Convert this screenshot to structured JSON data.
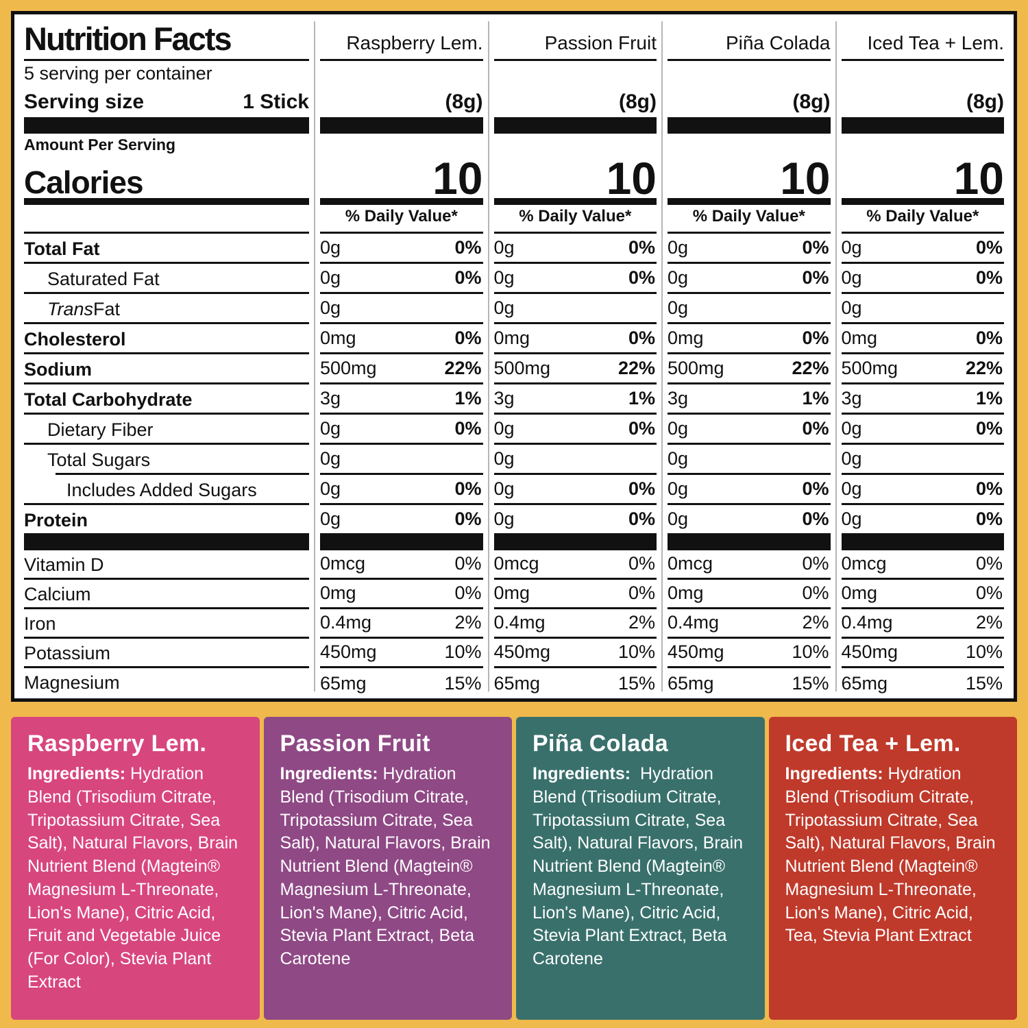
{
  "colors": {
    "frame": "#EFB94C",
    "table_border": "#111111",
    "divider": "#b5b5b5"
  },
  "nutrition": {
    "title": "Nutrition Facts",
    "servings_per_container": "5 serving per container",
    "serving_size_label": "Serving size",
    "serving_size_value": "1 Stick",
    "amount_per_serving": "Amount Per Serving",
    "calories_label": "Calories",
    "daily_value_header": "% Daily Value*",
    "flavors": [
      {
        "name": "Raspberry Lem.",
        "serving_weight": "(8g)",
        "calories": "10"
      },
      {
        "name": "Passion Fruit",
        "serving_weight": "(8g)",
        "calories": "10"
      },
      {
        "name": "Piña Colada",
        "serving_weight": "(8g)",
        "calories": "10"
      },
      {
        "name": "Iced Tea + Lem.",
        "serving_weight": "(8g)",
        "calories": "10"
      }
    ],
    "rows": [
      {
        "label": "Total Fat",
        "bold": true,
        "indent": 0,
        "amount": "0g",
        "dv": "0%"
      },
      {
        "label": "Saturated Fat",
        "bold": false,
        "indent": 1,
        "amount": "0g",
        "dv": "0%"
      },
      {
        "label": "Trans Fat",
        "bold": false,
        "indent": 1,
        "amount": "0g",
        "dv": "",
        "italic_lead": "Trans",
        "label_rest": " Fat"
      },
      {
        "label": "Cholesterol",
        "bold": true,
        "indent": 0,
        "amount": "0mg",
        "dv": "0%"
      },
      {
        "label": "Sodium",
        "bold": true,
        "indent": 0,
        "amount": "500mg",
        "dv": "22%"
      },
      {
        "label": "Total Carbohydrate",
        "bold": true,
        "indent": 0,
        "amount": "3g",
        "dv": "1%"
      },
      {
        "label": "Dietary Fiber",
        "bold": false,
        "indent": 1,
        "amount": "0g",
        "dv": "0%"
      },
      {
        "label": "Total Sugars",
        "bold": false,
        "indent": 1,
        "amount": "0g",
        "dv": "",
        "line_indent": true
      },
      {
        "label": "Includes Added Sugars",
        "bold": false,
        "indent": 2,
        "amount": "0g",
        "dv": "0%"
      },
      {
        "label": "Protein",
        "bold": true,
        "indent": 0,
        "amount": "0g",
        "dv": "0%"
      }
    ],
    "micro_rows": [
      {
        "label": "Vitamin D",
        "amount": "0mcg",
        "dv": "0%"
      },
      {
        "label": "Calcium",
        "amount": "0mg",
        "dv": "0%"
      },
      {
        "label": "Iron",
        "amount": "0.4mg",
        "dv": "2%"
      },
      {
        "label": "Potassium",
        "amount": "450mg",
        "dv": "10%"
      },
      {
        "label": "Magnesium",
        "amount": "65mg",
        "dv": "15%"
      }
    ]
  },
  "ingredient_panels": [
    {
      "title": "Raspberry Lem.",
      "color": "#D8467E",
      "ingredients_label": "Ingredients:",
      "text": " Hydration Blend (Trisodium Citrate, Tripotassium Citrate, Sea Salt), Natural Flavors, Brain Nutrient Blend (Magtein® Magnesium L-Threonate, Lion's Mane), Citric Acid, Fruit and Vegetable Juice (For Color), Stevia Plant Extract"
    },
    {
      "title": "Passion Fruit",
      "color": "#8F4985",
      "ingredients_label": "Ingredients:",
      "text": " Hydration Blend (Trisodium Citrate, Tripotassium Citrate, Sea Salt), Natural Flavors, Brain Nutrient Blend (Magtein® Magnesium L-Threonate, Lion's Mane), Citric Acid, Stevia Plant Extract, Beta Carotene"
    },
    {
      "title": "Piña Colada",
      "color": "#39706C",
      "ingredients_label": "Ingredients:",
      "text": "  Hydration Blend (Trisodium Citrate, Tripotassium Citrate, Sea Salt), Natural Flavors, Brain Nutrient Blend (Magtein® Magnesium L-Threonate, Lion's Mane), Citric Acid, Stevia Plant Extract, Beta Carotene"
    },
    {
      "title": "Iced Tea + Lem.",
      "color": "#BF3A2B",
      "ingredients_label": "Ingredients:",
      "text": " Hydration Blend (Trisodium Citrate, Tripotassium Citrate, Sea Salt), Natural Flavors, Brain Nutrient Blend (Magtein® Magnesium L-Threonate, Lion's Mane), Citric Acid, Tea, Stevia Plant Extract"
    }
  ]
}
